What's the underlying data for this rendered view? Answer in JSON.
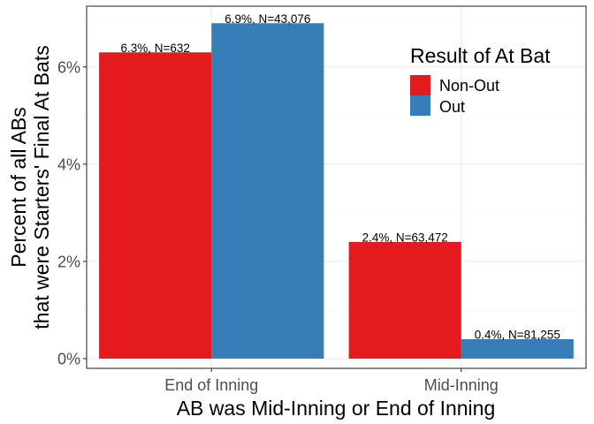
{
  "chart_data": {
    "type": "bar",
    "categories": [
      "End of Inning",
      "Mid-Inning"
    ],
    "series": [
      {
        "name": "Non-Out",
        "color": "#E41A1C",
        "values": [
          6.3,
          2.4
        ],
        "labels": [
          "6.3%, N=632",
          "2.4%, N=63,472"
        ]
      },
      {
        "name": "Out",
        "color": "#377EB8",
        "values": [
          6.9,
          0.4
        ],
        "labels": [
          "6.9%, N=43,076",
          "0.4%, N=81,255"
        ]
      }
    ],
    "xlabel": "AB was Mid-Inning or End of Inning",
    "ylabel_lines": [
      "Percent of all ABs",
      "that were Starters' Final At Bats"
    ],
    "ylim": [
      -0.2,
      7.25
    ],
    "yticks": [
      0,
      2,
      4,
      6
    ],
    "ytick_labels": [
      "0%",
      "2%",
      "4%",
      "6%"
    ],
    "grid": true,
    "legend": {
      "title": "Result of At Bat",
      "position": "inside top-right"
    }
  }
}
